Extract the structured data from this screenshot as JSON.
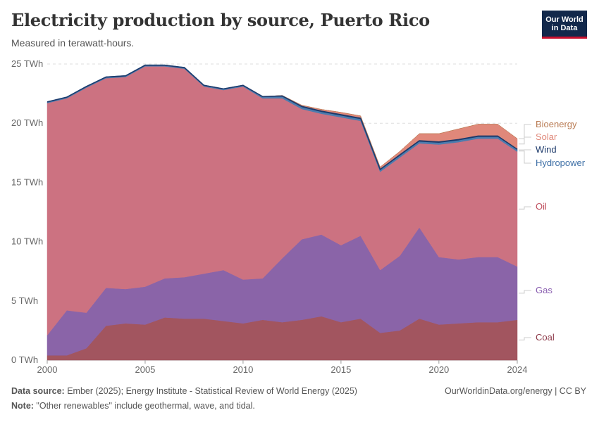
{
  "header": {
    "title": "Electricity production by source, Puerto Rico",
    "subtitle": "Measured in terawatt-hours.",
    "logo_line1": "Our World",
    "logo_line2": "in Data"
  },
  "footer": {
    "source_label": "Data source:",
    "source_text": " Ember (2025); Energy Institute - Statistical Review of World Energy (2025)",
    "note_label": "Note:",
    "note_text": " \"Other renewables\" include geothermal, wave, and tidal.",
    "right_text": "OurWorldinData.org/energy | CC BY"
  },
  "chart_data": {
    "type": "area",
    "stacked": true,
    "title": "Electricity production by source, Puerto Rico",
    "ylabel": "TWh",
    "ylim": [
      0,
      25
    ],
    "y_ticks": [
      0,
      5,
      10,
      15,
      20,
      25
    ],
    "y_tick_labels": [
      "0 TWh",
      "5 TWh",
      "10 TWh",
      "15 TWh",
      "20 TWh",
      "25 TWh"
    ],
    "x_ticks": [
      2000,
      2005,
      2010,
      2015,
      2020,
      2024
    ],
    "x_tick_labels": [
      "2000",
      "2005",
      "2010",
      "2015",
      "2020",
      "2024"
    ],
    "x": [
      2000,
      2001,
      2002,
      2003,
      2004,
      2005,
      2006,
      2007,
      2008,
      2009,
      2010,
      2011,
      2012,
      2013,
      2014,
      2015,
      2016,
      2017,
      2018,
      2019,
      2020,
      2021,
      2022,
      2023,
      2024
    ],
    "series": [
      {
        "name": "Coal",
        "color": "#a2555f",
        "values": [
          0.4,
          0.4,
          1.0,
          2.9,
          3.1,
          3.0,
          3.6,
          3.5,
          3.5,
          3.3,
          3.1,
          3.4,
          3.2,
          3.4,
          3.7,
          3.2,
          3.5,
          2.3,
          2.5,
          3.5,
          3.0,
          3.1,
          3.2,
          3.2,
          3.4
        ]
      },
      {
        "name": "Gas",
        "color": "#8a64a8",
        "values": [
          1.7,
          3.8,
          3.0,
          3.2,
          2.9,
          3.2,
          3.3,
          3.5,
          3.8,
          4.3,
          3.7,
          3.5,
          5.4,
          6.8,
          6.9,
          6.5,
          7.0,
          5.3,
          6.3,
          7.7,
          5.7,
          5.4,
          5.5,
          5.5,
          4.5
        ]
      },
      {
        "name": "Oil",
        "color": "#cc7281",
        "values": [
          19.6,
          17.9,
          19.0,
          17.7,
          17.9,
          18.6,
          17.9,
          17.6,
          15.8,
          15.2,
          16.3,
          15.2,
          13.5,
          11.0,
          10.2,
          10.8,
          9.7,
          8.3,
          8.3,
          7.1,
          9.5,
          9.9,
          10.0,
          10.0,
          9.7
        ]
      },
      {
        "name": "Hydropower",
        "color": "#4c7cae",
        "values": [
          0.1,
          0.1,
          0.1,
          0.1,
          0.1,
          0.1,
          0.1,
          0.1,
          0.1,
          0.1,
          0.1,
          0.1,
          0.1,
          0.1,
          0.1,
          0.1,
          0.1,
          0.1,
          0.1,
          0.1,
          0.1,
          0.1,
          0.1,
          0.1,
          0.1
        ]
      },
      {
        "name": "Wind",
        "color": "#1d3a6b",
        "values": [
          0,
          0,
          0,
          0,
          0,
          0,
          0,
          0,
          0,
          0,
          0,
          0.05,
          0.1,
          0.12,
          0.12,
          0.12,
          0.12,
          0.1,
          0.12,
          0.12,
          0.12,
          0.12,
          0.12,
          0.12,
          0.1
        ]
      },
      {
        "name": "Solar",
        "color": "#e0887a",
        "values": [
          0,
          0,
          0,
          0,
          0,
          0,
          0,
          0,
          0,
          0,
          0,
          0,
          0.05,
          0.1,
          0.15,
          0.2,
          0.2,
          0.2,
          0.3,
          0.6,
          0.7,
          0.9,
          1.0,
          1.0,
          0.9
        ]
      },
      {
        "name": "Bioenergy",
        "color": "#b97b53",
        "values": [
          0,
          0,
          0,
          0,
          0,
          0,
          0,
          0,
          0,
          0,
          0,
          0,
          0,
          0,
          0,
          0,
          0,
          0,
          0,
          0,
          0,
          0,
          0,
          0,
          0
        ]
      }
    ],
    "legend": [
      {
        "name": "Bioenergy",
        "color": "#b97b53"
      },
      {
        "name": "Solar",
        "color": "#e0887a"
      },
      {
        "name": "Wind",
        "color": "#1d3a6b"
      },
      {
        "name": "Hydropower",
        "color": "#3d6fa6"
      },
      {
        "name": "Oil",
        "color": "#c0505f"
      },
      {
        "name": "Gas",
        "color": "#8a5fb0"
      },
      {
        "name": "Coal",
        "color": "#8e3b4a"
      }
    ]
  }
}
